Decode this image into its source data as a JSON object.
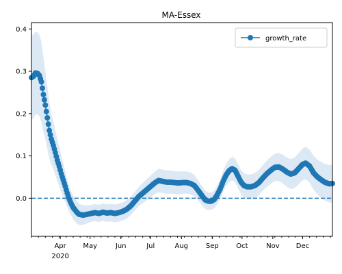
{
  "chart_data": {
    "type": "line",
    "title": "MA-Essex",
    "xlabel": "",
    "ylabel": "",
    "x_start": "2020-03-03",
    "x_end": "2020-12-31",
    "ylim": [
      -0.09,
      0.415
    ],
    "y_ticks": [
      0.0,
      0.1,
      0.2,
      0.3,
      0.4
    ],
    "y_tick_labels": [
      "0.0",
      "0.1",
      "0.2",
      "0.3",
      "0.4"
    ],
    "x_major_ticks": [
      {
        "date": "2020-04-01",
        "label": "Apr",
        "sublabel": "2020"
      },
      {
        "date": "2020-05-01",
        "label": "May",
        "sublabel": ""
      },
      {
        "date": "2020-06-01",
        "label": "Jun",
        "sublabel": ""
      },
      {
        "date": "2020-07-01",
        "label": "Jul",
        "sublabel": ""
      },
      {
        "date": "2020-08-01",
        "label": "Aug",
        "sublabel": ""
      },
      {
        "date": "2020-09-01",
        "label": "Sep",
        "sublabel": ""
      },
      {
        "date": "2020-10-01",
        "label": "Oct",
        "sublabel": ""
      },
      {
        "date": "2020-11-01",
        "label": "Nov",
        "sublabel": ""
      },
      {
        "date": "2020-12-01",
        "label": "Dec",
        "sublabel": ""
      }
    ],
    "reference_line": {
      "y": 0.0,
      "style": "dashed",
      "color": "#1f77b4"
    },
    "legend": {
      "placement": "top-right",
      "entries": [
        "growth_rate"
      ]
    },
    "grid": false,
    "colors": {
      "series": "#1f77b4",
      "band": "#dce9f5"
    },
    "series": [
      {
        "name": "growth_rate",
        "marker": "circle",
        "points": [
          [
            "2020-03-03",
            0.285
          ],
          [
            "2020-03-05",
            0.288
          ],
          [
            "2020-03-07",
            0.296
          ],
          [
            "2020-03-09",
            0.295
          ],
          [
            "2020-03-11",
            0.29
          ],
          [
            "2020-03-13",
            0.275
          ],
          [
            "2020-03-15",
            0.245
          ],
          [
            "2020-03-17",
            0.22
          ],
          [
            "2020-03-19",
            0.19
          ],
          [
            "2020-03-21",
            0.16
          ],
          [
            "2020-03-23",
            0.14
          ],
          [
            "2020-03-25",
            0.125
          ],
          [
            "2020-03-27",
            0.108
          ],
          [
            "2020-03-29",
            0.09
          ],
          [
            "2020-03-31",
            0.075
          ],
          [
            "2020-04-02",
            0.058
          ],
          [
            "2020-04-04",
            0.043
          ],
          [
            "2020-04-06",
            0.028
          ],
          [
            "2020-04-08",
            0.012
          ],
          [
            "2020-04-10",
            -0.002
          ],
          [
            "2020-04-12",
            -0.013
          ],
          [
            "2020-04-14",
            -0.022
          ],
          [
            "2020-04-16",
            -0.028
          ],
          [
            "2020-04-18",
            -0.034
          ],
          [
            "2020-04-20",
            -0.038
          ],
          [
            "2020-04-24",
            -0.04
          ],
          [
            "2020-04-28",
            -0.038
          ],
          [
            "2020-05-02",
            -0.036
          ],
          [
            "2020-05-06",
            -0.034
          ],
          [
            "2020-05-10",
            -0.036
          ],
          [
            "2020-05-14",
            -0.033
          ],
          [
            "2020-05-18",
            -0.035
          ],
          [
            "2020-05-22",
            -0.034
          ],
          [
            "2020-05-26",
            -0.036
          ],
          [
            "2020-05-30",
            -0.034
          ],
          [
            "2020-06-03",
            -0.031
          ],
          [
            "2020-06-07",
            -0.026
          ],
          [
            "2020-06-11",
            -0.018
          ],
          [
            "2020-06-15",
            -0.007
          ],
          [
            "2020-06-19",
            0.004
          ],
          [
            "2020-06-23",
            0.012
          ],
          [
            "2020-06-27",
            0.02
          ],
          [
            "2020-07-01",
            0.028
          ],
          [
            "2020-07-05",
            0.036
          ],
          [
            "2020-07-09",
            0.042
          ],
          [
            "2020-07-13",
            0.04
          ],
          [
            "2020-07-17",
            0.038
          ],
          [
            "2020-07-21",
            0.038
          ],
          [
            "2020-07-25",
            0.037
          ],
          [
            "2020-07-29",
            0.036
          ],
          [
            "2020-08-02",
            0.037
          ],
          [
            "2020-08-06",
            0.037
          ],
          [
            "2020-08-10",
            0.035
          ],
          [
            "2020-08-14",
            0.03
          ],
          [
            "2020-08-18",
            0.018
          ],
          [
            "2020-08-22",
            0.005
          ],
          [
            "2020-08-25",
            -0.004
          ],
          [
            "2020-08-28",
            -0.007
          ],
          [
            "2020-08-31",
            -0.007
          ],
          [
            "2020-09-03",
            -0.003
          ],
          [
            "2020-09-06",
            0.008
          ],
          [
            "2020-09-09",
            0.022
          ],
          [
            "2020-09-12",
            0.04
          ],
          [
            "2020-09-15",
            0.055
          ],
          [
            "2020-09-18",
            0.065
          ],
          [
            "2020-09-21",
            0.07
          ],
          [
            "2020-09-24",
            0.066
          ],
          [
            "2020-09-27",
            0.052
          ],
          [
            "2020-09-30",
            0.038
          ],
          [
            "2020-10-03",
            0.03
          ],
          [
            "2020-10-06",
            0.027
          ],
          [
            "2020-10-10",
            0.027
          ],
          [
            "2020-10-14",
            0.03
          ],
          [
            "2020-10-18",
            0.037
          ],
          [
            "2020-10-22",
            0.048
          ],
          [
            "2020-10-26",
            0.058
          ],
          [
            "2020-10-30",
            0.066
          ],
          [
            "2020-11-03",
            0.073
          ],
          [
            "2020-11-07",
            0.074
          ],
          [
            "2020-11-11",
            0.069
          ],
          [
            "2020-11-15",
            0.062
          ],
          [
            "2020-11-19",
            0.057
          ],
          [
            "2020-11-23",
            0.06
          ],
          [
            "2020-11-27",
            0.07
          ],
          [
            "2020-12-01",
            0.08
          ],
          [
            "2020-12-04",
            0.083
          ],
          [
            "2020-12-08",
            0.076
          ],
          [
            "2020-12-12",
            0.06
          ],
          [
            "2020-12-16",
            0.05
          ],
          [
            "2020-12-20",
            0.043
          ],
          [
            "2020-12-24",
            0.037
          ],
          [
            "2020-12-28",
            0.034
          ],
          [
            "2020-12-31",
            0.035
          ]
        ],
        "band_halfwidth": [
          [
            "2020-03-03",
            0.1
          ],
          [
            "2020-03-13",
            0.095
          ],
          [
            "2020-03-23",
            0.06
          ],
          [
            "2020-04-10",
            0.03
          ],
          [
            "2020-05-01",
            0.02
          ],
          [
            "2020-06-15",
            0.022
          ],
          [
            "2020-07-10",
            0.028
          ],
          [
            "2020-08-10",
            0.026
          ],
          [
            "2020-09-01",
            0.02
          ],
          [
            "2020-09-20",
            0.028
          ],
          [
            "2020-10-20",
            0.03
          ],
          [
            "2020-12-03",
            0.038
          ],
          [
            "2020-12-31",
            0.045
          ]
        ]
      }
    ]
  }
}
